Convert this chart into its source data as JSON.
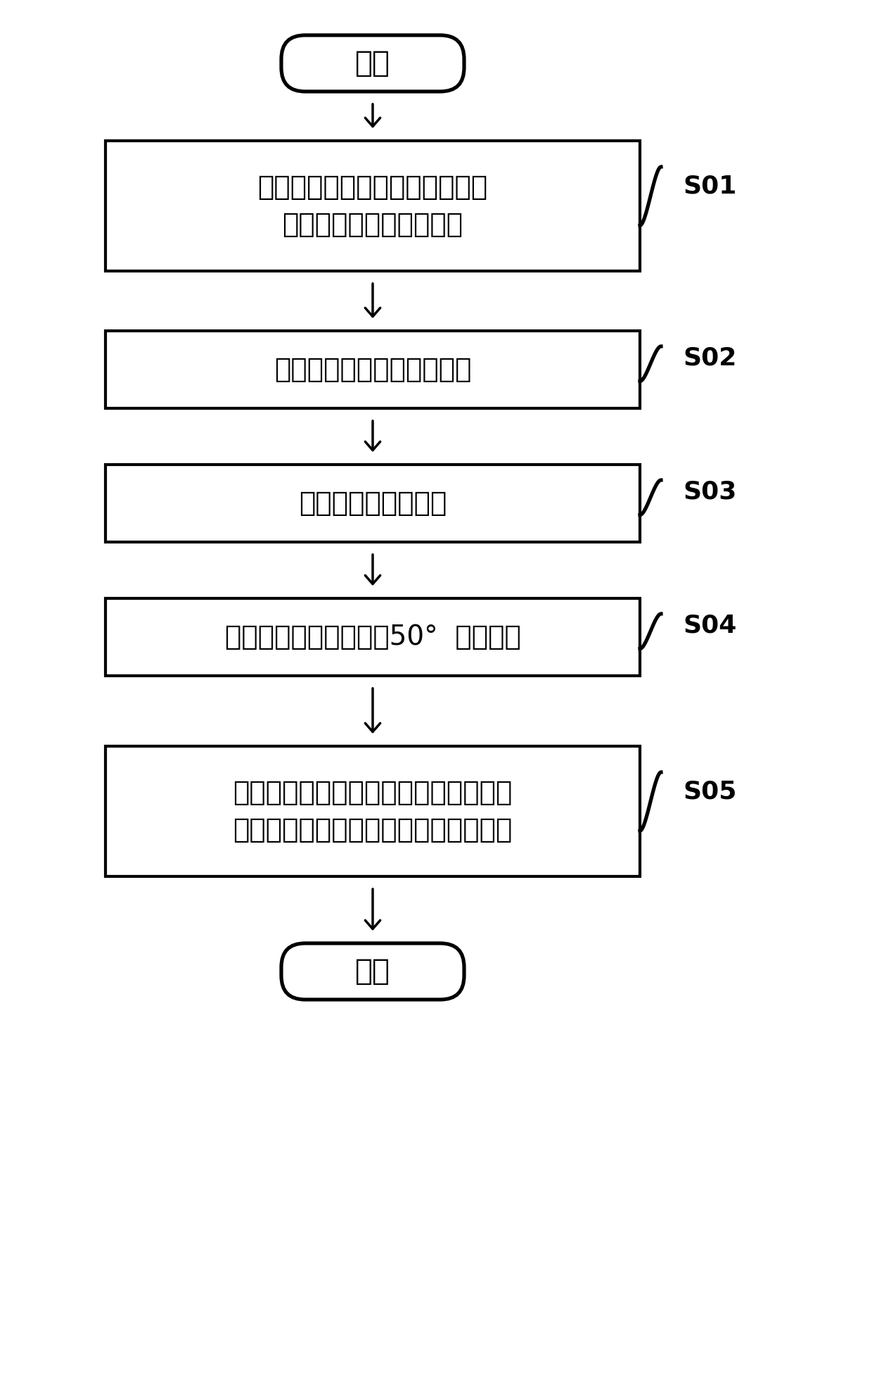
{
  "bg_color": "#ffffff",
  "border_color": "#000000",
  "text_color": "#000000",
  "fig_width": 12.4,
  "fig_height": 19.59,
  "start_end_text": [
    "开始",
    "结束"
  ],
  "box_labels": [
    "在果树或一年生草本植物的不同\n部位插入电极及其对电极",
    "让两个电极与内部组织接触",
    "在电极之间施加电压",
    "使内部组织的温度低于50°  进行调整",
    "果实、块根、球根、块茎、或叶片中的\n酶素的增加、糖度的增加、酸度的减少"
  ],
  "step_labels": [
    "S01",
    "S02",
    "S03",
    "S04",
    "S05"
  ],
  "line_width": 2.5,
  "arrow_linewidth": 2.0,
  "font_size_main": 28,
  "font_size_step": 26,
  "font_size_startend": 30
}
